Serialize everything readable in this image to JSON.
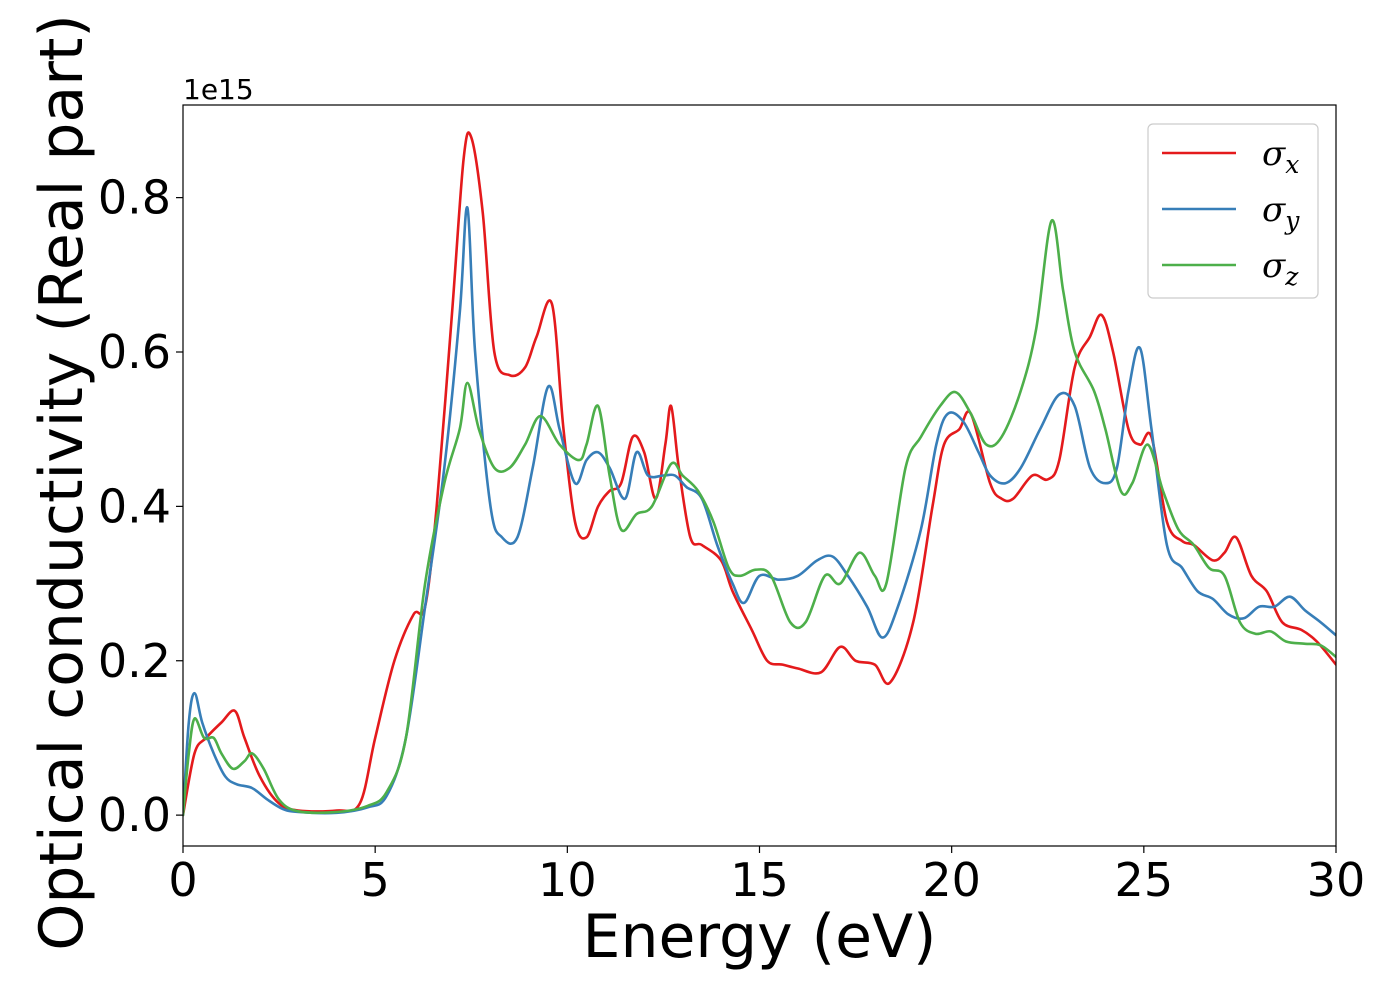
{
  "chart_data": {
    "type": "line",
    "xlabel": "Energy (eV)",
    "ylabel": "Optical conductivity (Real part)",
    "y_offset_label": "1e15",
    "xlim": [
      0,
      30
    ],
    "ylim": [
      -0.04,
      0.92
    ],
    "x_ticks": [
      0,
      5,
      10,
      15,
      20,
      25,
      30
    ],
    "x_tick_labels": [
      "0",
      "5",
      "10",
      "15",
      "20",
      "25",
      "30"
    ],
    "y_ticks": [
      0.0,
      0.2,
      0.4,
      0.6,
      0.8
    ],
    "y_tick_labels": [
      "0.0",
      "0.2",
      "0.4",
      "0.6",
      "0.8"
    ],
    "grid": false,
    "legend_position": "top-right",
    "series": [
      {
        "name": "σx",
        "base": "σ",
        "sub": "x",
        "color": "#e41a1c",
        "points": [
          [
            0,
            0.0
          ],
          [
            0.3,
            0.08
          ],
          [
            0.6,
            0.1
          ],
          [
            1.0,
            0.12
          ],
          [
            1.35,
            0.135
          ],
          [
            1.6,
            0.1
          ],
          [
            2.0,
            0.05
          ],
          [
            2.5,
            0.015
          ],
          [
            3.0,
            0.006
          ],
          [
            4.0,
            0.006
          ],
          [
            4.6,
            0.015
          ],
          [
            5.0,
            0.1
          ],
          [
            5.5,
            0.2
          ],
          [
            6.0,
            0.26
          ],
          [
            6.3,
            0.27
          ],
          [
            6.6,
            0.4
          ],
          [
            7.0,
            0.65
          ],
          [
            7.3,
            0.85
          ],
          [
            7.5,
            0.878
          ],
          [
            7.8,
            0.78
          ],
          [
            8.1,
            0.6
          ],
          [
            8.5,
            0.57
          ],
          [
            8.9,
            0.58
          ],
          [
            9.2,
            0.62
          ],
          [
            9.6,
            0.662
          ],
          [
            9.9,
            0.5
          ],
          [
            10.2,
            0.38
          ],
          [
            10.5,
            0.36
          ],
          [
            10.8,
            0.4
          ],
          [
            11.1,
            0.42
          ],
          [
            11.4,
            0.43
          ],
          [
            11.7,
            0.49
          ],
          [
            12.0,
            0.47
          ],
          [
            12.3,
            0.41
          ],
          [
            12.55,
            0.48
          ],
          [
            12.7,
            0.53
          ],
          [
            12.9,
            0.45
          ],
          [
            13.2,
            0.36
          ],
          [
            13.5,
            0.35
          ],
          [
            14.0,
            0.33
          ],
          [
            14.3,
            0.29
          ],
          [
            14.8,
            0.24
          ],
          [
            15.2,
            0.2
          ],
          [
            15.6,
            0.195
          ],
          [
            16.0,
            0.19
          ],
          [
            16.6,
            0.185
          ],
          [
            17.1,
            0.218
          ],
          [
            17.5,
            0.2
          ],
          [
            18.0,
            0.195
          ],
          [
            18.4,
            0.172
          ],
          [
            19.0,
            0.25
          ],
          [
            19.5,
            0.4
          ],
          [
            19.8,
            0.48
          ],
          [
            20.2,
            0.5
          ],
          [
            20.5,
            0.52
          ],
          [
            21.0,
            0.43
          ],
          [
            21.3,
            0.41
          ],
          [
            21.6,
            0.41
          ],
          [
            22.1,
            0.44
          ],
          [
            22.5,
            0.435
          ],
          [
            22.8,
            0.46
          ],
          [
            23.2,
            0.58
          ],
          [
            23.6,
            0.62
          ],
          [
            23.9,
            0.648
          ],
          [
            24.2,
            0.6
          ],
          [
            24.6,
            0.5
          ],
          [
            24.9,
            0.48
          ],
          [
            25.2,
            0.49
          ],
          [
            25.6,
            0.38
          ],
          [
            26.0,
            0.355
          ],
          [
            26.3,
            0.35
          ],
          [
            26.8,
            0.33
          ],
          [
            27.1,
            0.34
          ],
          [
            27.4,
            0.36
          ],
          [
            27.8,
            0.31
          ],
          [
            28.2,
            0.29
          ],
          [
            28.6,
            0.25
          ],
          [
            29.1,
            0.24
          ],
          [
            29.5,
            0.225
          ],
          [
            30.0,
            0.195
          ]
        ]
      },
      {
        "name": "σy",
        "base": "σ",
        "sub": "y",
        "color": "#377eb8",
        "points": [
          [
            0,
            0.0
          ],
          [
            0.15,
            0.12
          ],
          [
            0.3,
            0.158
          ],
          [
            0.5,
            0.12
          ],
          [
            0.8,
            0.08
          ],
          [
            1.1,
            0.05
          ],
          [
            1.4,
            0.04
          ],
          [
            1.8,
            0.035
          ],
          [
            2.2,
            0.02
          ],
          [
            2.6,
            0.008
          ],
          [
            3.0,
            0.004
          ],
          [
            4.0,
            0.003
          ],
          [
            4.8,
            0.01
          ],
          [
            5.3,
            0.025
          ],
          [
            5.8,
            0.1
          ],
          [
            6.3,
            0.27
          ],
          [
            6.8,
            0.45
          ],
          [
            7.2,
            0.65
          ],
          [
            7.4,
            0.787
          ],
          [
            7.6,
            0.6
          ],
          [
            8.0,
            0.4
          ],
          [
            8.3,
            0.36
          ],
          [
            8.7,
            0.36
          ],
          [
            9.1,
            0.45
          ],
          [
            9.5,
            0.555
          ],
          [
            9.8,
            0.5
          ],
          [
            10.2,
            0.43
          ],
          [
            10.5,
            0.46
          ],
          [
            10.8,
            0.47
          ],
          [
            11.1,
            0.45
          ],
          [
            11.5,
            0.41
          ],
          [
            11.8,
            0.47
          ],
          [
            12.1,
            0.44
          ],
          [
            12.5,
            0.44
          ],
          [
            12.8,
            0.44
          ],
          [
            13.1,
            0.425
          ],
          [
            13.5,
            0.41
          ],
          [
            13.9,
            0.35
          ],
          [
            14.3,
            0.3
          ],
          [
            14.6,
            0.275
          ],
          [
            15.0,
            0.31
          ],
          [
            15.5,
            0.305
          ],
          [
            16.0,
            0.31
          ],
          [
            16.5,
            0.33
          ],
          [
            16.9,
            0.335
          ],
          [
            17.3,
            0.31
          ],
          [
            17.8,
            0.27
          ],
          [
            18.2,
            0.23
          ],
          [
            18.6,
            0.27
          ],
          [
            19.2,
            0.37
          ],
          [
            19.6,
            0.48
          ],
          [
            19.9,
            0.52
          ],
          [
            20.3,
            0.51
          ],
          [
            20.7,
            0.47
          ],
          [
            21.0,
            0.44
          ],
          [
            21.4,
            0.43
          ],
          [
            21.8,
            0.45
          ],
          [
            22.3,
            0.5
          ],
          [
            22.8,
            0.545
          ],
          [
            23.2,
            0.53
          ],
          [
            23.6,
            0.45
          ],
          [
            24.0,
            0.43
          ],
          [
            24.3,
            0.45
          ],
          [
            24.6,
            0.55
          ],
          [
            24.9,
            0.605
          ],
          [
            25.2,
            0.5
          ],
          [
            25.6,
            0.35
          ],
          [
            26.0,
            0.32
          ],
          [
            26.4,
            0.29
          ],
          [
            26.8,
            0.28
          ],
          [
            27.2,
            0.26
          ],
          [
            27.6,
            0.255
          ],
          [
            28.0,
            0.27
          ],
          [
            28.4,
            0.27
          ],
          [
            28.8,
            0.283
          ],
          [
            29.2,
            0.265
          ],
          [
            29.6,
            0.25
          ],
          [
            30.0,
            0.233
          ]
        ]
      },
      {
        "name": "σz",
        "base": "σ",
        "sub": "z",
        "color": "#4daf4a",
        "points": [
          [
            0,
            0.0
          ],
          [
            0.15,
            0.08
          ],
          [
            0.3,
            0.125
          ],
          [
            0.55,
            0.1
          ],
          [
            0.8,
            0.1
          ],
          [
            1.0,
            0.08
          ],
          [
            1.3,
            0.06
          ],
          [
            1.6,
            0.07
          ],
          [
            1.8,
            0.08
          ],
          [
            2.1,
            0.06
          ],
          [
            2.5,
            0.02
          ],
          [
            3.0,
            0.005
          ],
          [
            4.0,
            0.004
          ],
          [
            4.8,
            0.012
          ],
          [
            5.3,
            0.03
          ],
          [
            5.8,
            0.1
          ],
          [
            6.3,
            0.3
          ],
          [
            6.8,
            0.43
          ],
          [
            7.2,
            0.5
          ],
          [
            7.4,
            0.56
          ],
          [
            7.7,
            0.5
          ],
          [
            8.1,
            0.45
          ],
          [
            8.5,
            0.45
          ],
          [
            8.9,
            0.48
          ],
          [
            9.3,
            0.517
          ],
          [
            9.8,
            0.48
          ],
          [
            10.3,
            0.46
          ],
          [
            10.5,
            0.48
          ],
          [
            10.8,
            0.53
          ],
          [
            11.1,
            0.44
          ],
          [
            11.4,
            0.37
          ],
          [
            11.8,
            0.39
          ],
          [
            12.2,
            0.4
          ],
          [
            12.7,
            0.455
          ],
          [
            13.0,
            0.44
          ],
          [
            13.4,
            0.42
          ],
          [
            13.8,
            0.38
          ],
          [
            14.2,
            0.32
          ],
          [
            14.5,
            0.31
          ],
          [
            14.9,
            0.318
          ],
          [
            15.3,
            0.31
          ],
          [
            15.8,
            0.25
          ],
          [
            16.2,
            0.25
          ],
          [
            16.7,
            0.31
          ],
          [
            17.1,
            0.3
          ],
          [
            17.6,
            0.34
          ],
          [
            18.0,
            0.31
          ],
          [
            18.3,
            0.3
          ],
          [
            18.8,
            0.45
          ],
          [
            19.2,
            0.49
          ],
          [
            19.7,
            0.53
          ],
          [
            20.1,
            0.548
          ],
          [
            20.5,
            0.52
          ],
          [
            20.9,
            0.48
          ],
          [
            21.3,
            0.49
          ],
          [
            21.8,
            0.55
          ],
          [
            22.2,
            0.63
          ],
          [
            22.6,
            0.77
          ],
          [
            22.9,
            0.68
          ],
          [
            23.2,
            0.6
          ],
          [
            23.7,
            0.55
          ],
          [
            24.0,
            0.5
          ],
          [
            24.4,
            0.42
          ],
          [
            24.7,
            0.43
          ],
          [
            25.1,
            0.48
          ],
          [
            25.5,
            0.42
          ],
          [
            25.9,
            0.37
          ],
          [
            26.3,
            0.35
          ],
          [
            26.7,
            0.32
          ],
          [
            27.1,
            0.31
          ],
          [
            27.5,
            0.25
          ],
          [
            27.9,
            0.235
          ],
          [
            28.3,
            0.238
          ],
          [
            28.7,
            0.225
          ],
          [
            29.2,
            0.222
          ],
          [
            29.6,
            0.22
          ],
          [
            30.0,
            0.205
          ]
        ]
      }
    ]
  }
}
